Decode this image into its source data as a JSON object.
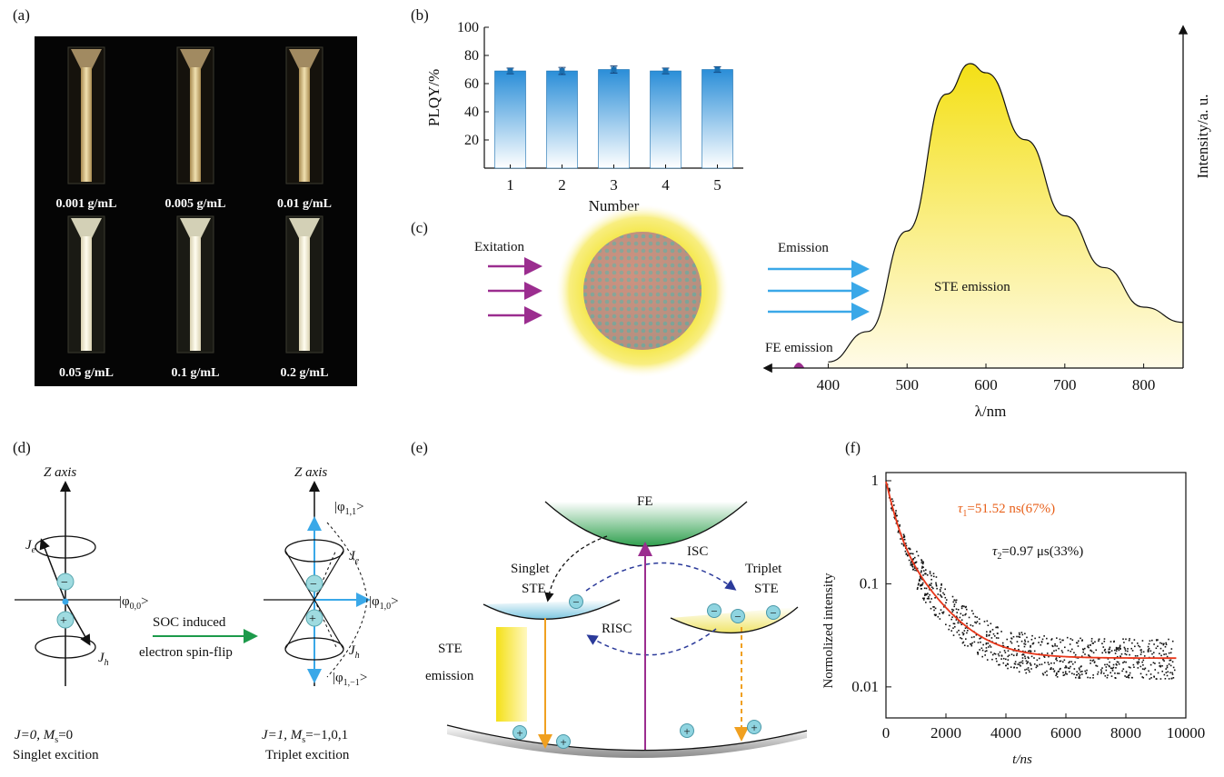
{
  "panels": {
    "a": {
      "label": "(a)",
      "samples": [
        "0.001 g/mL",
        "0.005 g/mL",
        "0.01 g/mL",
        "0.05 g/mL",
        "0.1 g/mL",
        "0.2 g/mL"
      ]
    },
    "b": {
      "label": "(b)"
    },
    "c": {
      "label": "(c)",
      "excitation": "Exitation",
      "emission": "Emission",
      "ste_emission": "STE emission",
      "fe_emission": "FE emission",
      "ylabel": "Intensity/a. u.",
      "xlabel": "λ/nm",
      "xticks": [
        "400",
        "500",
        "600",
        "700",
        "800"
      ]
    },
    "d": {
      "label": "(d)",
      "z_axis_left": "Z axis",
      "z_axis_right": "Z axis",
      "je_left": "J",
      "je_left_sub": "e",
      "jh_left": "J",
      "jh_left_sub": "h",
      "phi00": "|φ",
      "phi00_sub": "0,0",
      "phi11": "|φ",
      "phi11_sub": "1,1",
      "phi10": "|φ",
      "phi10_sub": "1,0",
      "phi1m1": "|φ",
      "phi1m1_sub": "1,−1",
      "ket_close": ">",
      "je_right": "J",
      "je_right_sub": "e",
      "jh_right": "J",
      "jh_right_sub": "h",
      "arrow_top": "SOC induced",
      "arrow_bottom": "electron spin-flip",
      "left_state1": "J=0, M",
      "left_state1_sub": "s",
      "left_state1_end": "=0",
      "left_state2": "Singlet excition",
      "right_state1": "J=1, M",
      "right_state1_sub": "s",
      "right_state1_end": "=−1,0,1",
      "right_state2": "Triplet excition"
    },
    "e": {
      "label": "(e)",
      "fe": "FE",
      "singlet": [
        "Singlet",
        "STE"
      ],
      "triplet": [
        "Triplet",
        "STE"
      ],
      "isc": "ISC",
      "risc": "RISC",
      "ste_em": [
        "STE",
        "emission"
      ]
    },
    "f": {
      "label": "(f)",
      "tau1": "τ",
      "tau1_sub": "1",
      "tau1_val": "=51.52 ns(67%)",
      "tau2": "τ",
      "tau2_sub": "2",
      "tau2_val": "=0.97 μs(33%)",
      "ylabel": "Normolized intensity",
      "xlabel": "t/ns"
    }
  },
  "colors": {
    "bar": "#3a9be0",
    "fit": "#e8361a",
    "tau1": "#e8601a",
    "excitation": "#9b2d8f",
    "emission": "#3aa8e8",
    "green_arrow": "#1c9a4a",
    "spectrum": "#f4e23a"
  },
  "chart_data": [
    {
      "type": "bar",
      "title": "",
      "xlabel": "Number",
      "ylabel": "PLQY/%",
      "categories": [
        "1",
        "2",
        "3",
        "4",
        "5"
      ],
      "values": [
        69,
        69,
        70,
        69,
        70
      ],
      "errors": [
        2,
        2.5,
        2.5,
        2,
        2
      ],
      "ylim": [
        0,
        100
      ],
      "yticks": [
        "20",
        "40",
        "60",
        "80",
        "100"
      ]
    },
    {
      "type": "line",
      "title": "",
      "xlabel": "λ/nm",
      "ylabel": "Intensity/a. u.",
      "x": [
        400,
        450,
        500,
        550,
        580,
        600,
        650,
        700,
        750,
        800,
        850
      ],
      "y": [
        0.02,
        0.12,
        0.45,
        0.9,
        1.0,
        0.97,
        0.75,
        0.5,
        0.33,
        0.2,
        0.15
      ],
      "xlim": [
        320,
        850
      ],
      "xticks": [
        "400",
        "500",
        "600",
        "700",
        "800"
      ]
    },
    {
      "type": "scatter",
      "title": "",
      "xlabel": "t/ns",
      "ylabel": "Normolized intensity",
      "xlim": [
        0,
        10000
      ],
      "ylim": [
        0.005,
        1.2
      ],
      "yscale": "log",
      "xticks": [
        "0",
        "2000",
        "4000",
        "6000",
        "8000",
        "10000"
      ],
      "yticks": [
        "0.01",
        "0.1",
        "1"
      ],
      "series": [
        {
          "name": "fit",
          "a1": 0.67,
          "tau1": 51.52,
          "a2": 0.31,
          "tau2": 970,
          "offset": 0.019
        }
      ]
    }
  ]
}
